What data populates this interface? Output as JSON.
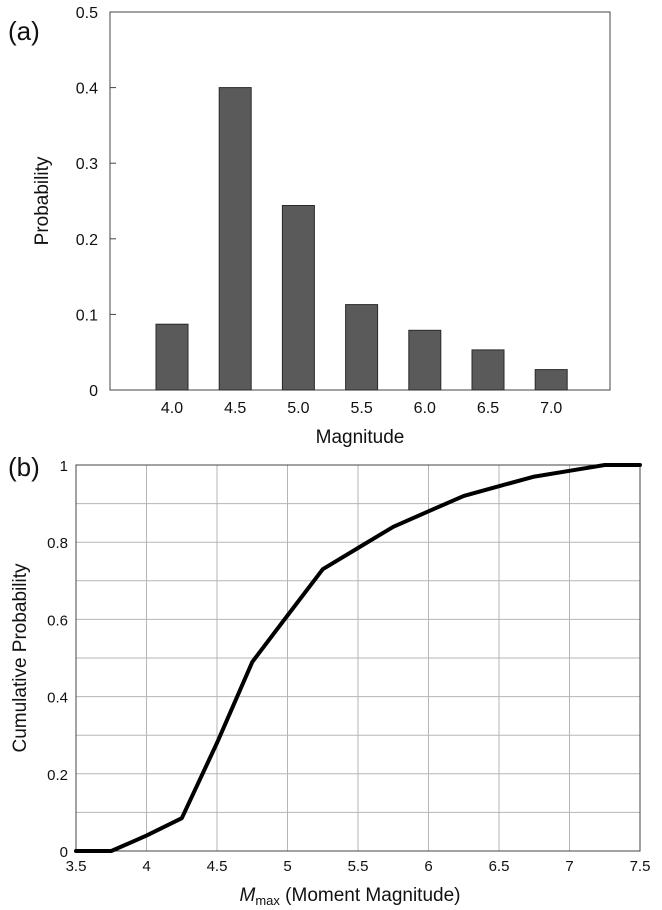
{
  "chart_data": [
    {
      "type": "bar",
      "panel_label": "(a)",
      "categories": [
        "4.0",
        "4.5",
        "5.0",
        "5.5",
        "6.0",
        "6.5",
        "7.0"
      ],
      "values": [
        0.087,
        0.4,
        0.244,
        0.113,
        0.079,
        0.053,
        0.027
      ],
      "xlabel": "Magnitude",
      "ylabel": "Probability",
      "ylim": [
        0,
        0.5
      ],
      "yticks": [
        "0",
        "0.1",
        "0.2",
        "0.3",
        "0.4",
        "0.5"
      ],
      "grid": false
    },
    {
      "type": "line",
      "panel_label": "(b)",
      "x": [
        3.5,
        3.75,
        4.0,
        4.25,
        4.5,
        4.75,
        5.0,
        5.25,
        5.5,
        5.75,
        6.0,
        6.25,
        6.5,
        6.75,
        7.0,
        7.25,
        7.5
      ],
      "y": [
        0,
        0,
        0.04,
        0.085,
        0.28,
        0.49,
        0.61,
        0.73,
        0.785,
        0.84,
        0.88,
        0.92,
        0.945,
        0.97,
        0.985,
        1.0,
        1.0
      ],
      "xlabel_italic": "M",
      "xlabel_sub": "max",
      "xlabel_rest": " (Moment Magnitude)",
      "ylabel": "Cumulative Probability",
      "xlim": [
        3.5,
        7.5
      ],
      "ylim": [
        0,
        1
      ],
      "xticks": [
        "3.5",
        "4",
        "4.5",
        "5",
        "5.5",
        "6",
        "6.5",
        "7",
        "7.5"
      ],
      "yticks": [
        "0",
        "0.2",
        "0.4",
        "0.6",
        "0.8",
        "1"
      ],
      "grid": true
    }
  ]
}
